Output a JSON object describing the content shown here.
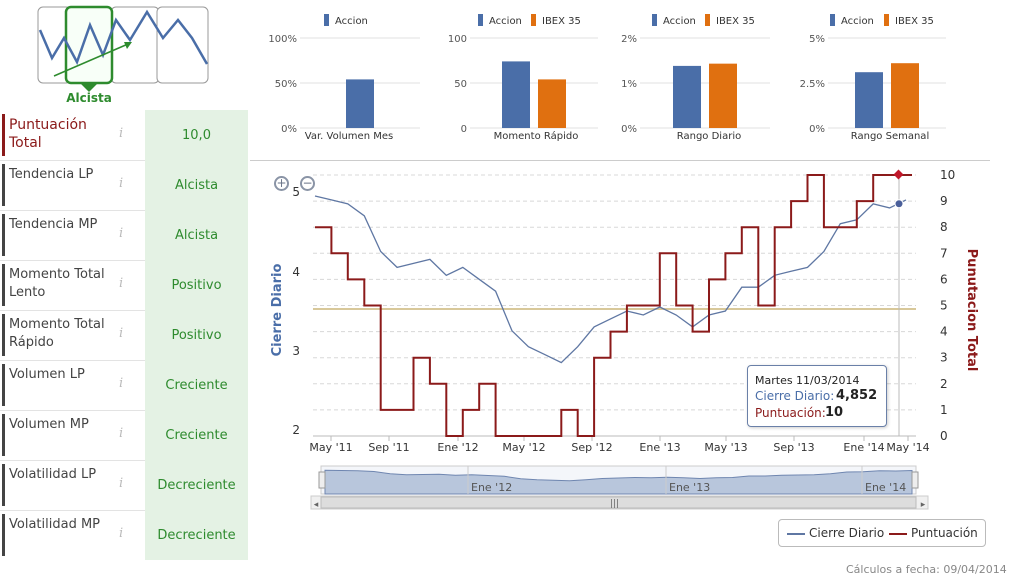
{
  "trend_widget": {
    "label": "Alcista"
  },
  "indicators": [
    {
      "label": "Puntuación Total",
      "value": "10,0"
    },
    {
      "label": "Tendencia LP",
      "value": "Alcista"
    },
    {
      "label": "Tendencia MP",
      "value": "Alcista"
    },
    {
      "label": "Momento Total Lento",
      "value": "Positivo"
    },
    {
      "label": "Momento Total Rápido",
      "value": "Positivo"
    },
    {
      "label": "Volumen LP",
      "value": "Creciente"
    },
    {
      "label": "Volumen MP",
      "value": "Creciente"
    },
    {
      "label": "Volatilidad LP",
      "value": "Decreciente"
    },
    {
      "label": "Volatilidad MP",
      "value": "Decreciente"
    }
  ],
  "info_glyph": "i",
  "colors": {
    "accion": "#4a6ea8",
    "ibex": "#e07010",
    "close_line": "#5f77a3",
    "score_line": "#8b1a1a",
    "positive": "#2e8b2e",
    "threshold": "#d8c89a"
  },
  "chart_data": [
    {
      "type": "bar",
      "title": "Var. Volumen Mes",
      "series": [
        {
          "name": "Accion",
          "values": [
            54
          ]
        }
      ],
      "yticks": [
        "100%",
        "50%",
        "0%"
      ],
      "ylim": [
        0,
        100
      ]
    },
    {
      "type": "bar",
      "title": "Momento Rápido",
      "series": [
        {
          "name": "Accion",
          "values": [
            74
          ]
        },
        {
          "name": "IBEX 35",
          "values": [
            54
          ]
        }
      ],
      "yticks": [
        "100",
        "50",
        "0"
      ],
      "ylim": [
        0,
        100
      ]
    },
    {
      "type": "bar",
      "title": "Rango Diario",
      "series": [
        {
          "name": "Accion",
          "values": [
            1.38
          ]
        },
        {
          "name": "IBEX 35",
          "values": [
            1.43
          ]
        }
      ],
      "yticks": [
        "2%",
        "1%",
        "0%"
      ],
      "ylim": [
        0,
        2
      ]
    },
    {
      "type": "bar",
      "title": "Rango Semanal",
      "series": [
        {
          "name": "Accion",
          "values": [
            3.1
          ]
        },
        {
          "name": "IBEX 35",
          "values": [
            3.6
          ]
        }
      ],
      "yticks": [
        "5%",
        "2.5%",
        "0%"
      ],
      "ylim": [
        0,
        5
      ]
    },
    {
      "type": "line",
      "ylabel_left": "Cierre Diario",
      "ylabel_right": "Punutacion Total",
      "y_left_ticks": [
        "5",
        "4",
        "3",
        "2"
      ],
      "y_left_range": [
        2,
        5
      ],
      "y_right_ticks": [
        "10",
        "9",
        "8",
        "7",
        "6",
        "5",
        "4",
        "3",
        "2",
        "1",
        "0"
      ],
      "y_right_range": [
        0,
        10
      ],
      "x_ticks": [
        "May '11",
        "Sep '11",
        "Ene '12",
        "May '12",
        "Sep '12",
        "Ene '13",
        "May '13",
        "Sep '13",
        "Ene '14",
        "May '14"
      ],
      "threshold_left": 3.55,
      "series": [
        {
          "name": "Cierre Diario",
          "x": [
            "May '11",
            "Jun '11",
            "Jul '11",
            "Ago '11",
            "Sep '11",
            "Oct '11",
            "Nov '11",
            "Dic '11",
            "Ene '12",
            "Feb '12",
            "Mar '12",
            "Abr '12",
            "May '12",
            "Jun '12",
            "Jul '12",
            "Ago '12",
            "Sep '12",
            "Oct '12",
            "Nov '12",
            "Dic '12",
            "Ene '13",
            "Feb '13",
            "Mar '13",
            "Abr '13",
            "May '13",
            "Jun '13",
            "Jul '13",
            "Ago '13",
            "Sep '13",
            "Oct '13",
            "Nov '13",
            "Dic '13",
            "Ene '14",
            "Feb '14",
            "Mar '14",
            "Abr '14",
            "May '14"
          ],
          "values": [
            4.95,
            4.9,
            4.85,
            4.7,
            4.25,
            4.05,
            4.1,
            4.15,
            3.95,
            4.05,
            3.9,
            3.75,
            3.25,
            3.05,
            2.95,
            2.85,
            3.05,
            3.3,
            3.4,
            3.5,
            3.45,
            3.55,
            3.45,
            3.3,
            3.45,
            3.5,
            3.8,
            3.8,
            3.95,
            4.0,
            4.05,
            4.25,
            4.6,
            4.65,
            4.85,
            4.8,
            4.9
          ]
        },
        {
          "name": "Puntuación",
          "x": [
            "May '11",
            "Jun '11",
            "Jul '11",
            "Ago '11",
            "Sep '11",
            "Oct '11",
            "Nov '11",
            "Dic '11",
            "Ene '12",
            "Feb '12",
            "Mar '12",
            "Abr '12",
            "May '12",
            "Jun '12",
            "Jul '12",
            "Ago '12",
            "Sep '12",
            "Oct '12",
            "Nov '12",
            "Dic '12",
            "Ene '13",
            "Feb '13",
            "Mar '13",
            "Abr '13",
            "May '13",
            "Jun '13",
            "Jul '13",
            "Ago '13",
            "Sep '13",
            "Oct '13",
            "Nov '13",
            "Dic '13",
            "Ene '14",
            "Feb '14",
            "Mar '14",
            "Abr '14",
            "May '14"
          ],
          "values": [
            8,
            7,
            6,
            5,
            1,
            1,
            3,
            2,
            0,
            1,
            2,
            0,
            0,
            0,
            0,
            1,
            0,
            3,
            4,
            5,
            5,
            7,
            5,
            4,
            6,
            7,
            8,
            5,
            8,
            9,
            10,
            8,
            8,
            9,
            10,
            10,
            10
          ]
        }
      ],
      "navigator_ticks": [
        "Ene '12",
        "Ene '13",
        "Ene '14"
      ],
      "tooltip": {
        "date": "Martes 11/03/2014",
        "close_label": "Cierre Diario:",
        "close_value": "4,852",
        "score_label": "Puntuación:",
        "score_value": "10"
      },
      "legend": [
        "Cierre Diario",
        "Puntuación"
      ]
    }
  ],
  "footer": {
    "calc_date": "Cálculos a fecha: 09/04/2014"
  }
}
